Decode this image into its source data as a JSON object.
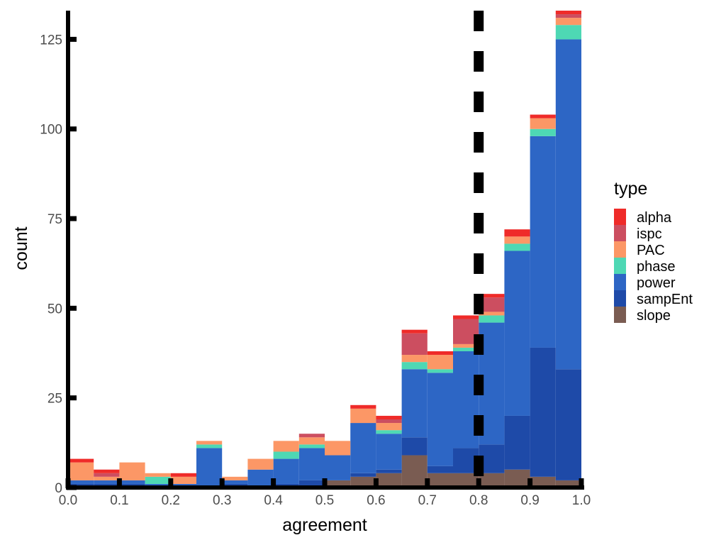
{
  "chart_data": {
    "type": "bar",
    "stacked": true,
    "xlabel": "agreement",
    "ylabel": "count",
    "xlim": [
      0,
      1
    ],
    "ylim": [
      0,
      133
    ],
    "xticks": [
      "0.0",
      "0.1",
      "0.2",
      "0.3",
      "0.4",
      "0.5",
      "0.6",
      "0.7",
      "0.8",
      "0.9",
      "1.0"
    ],
    "yticks": [
      "0",
      "25",
      "50",
      "75",
      "100",
      "125"
    ],
    "grid": false,
    "bin_width": 0.05,
    "bin_centers": [
      0.025,
      0.075,
      0.125,
      0.175,
      0.225,
      0.275,
      0.325,
      0.375,
      0.425,
      0.475,
      0.525,
      0.575,
      0.625,
      0.675,
      0.725,
      0.775,
      0.825,
      0.875,
      0.925,
      0.975
    ],
    "vline": {
      "x": 0.8,
      "style": "dashed"
    },
    "legend": {
      "title": "type",
      "position": "right"
    },
    "series": [
      {
        "name": "slope",
        "color": "#7a5c52",
        "values": [
          0,
          0,
          0,
          0,
          0,
          0,
          0,
          0,
          0,
          0,
          2,
          3,
          4,
          9,
          4,
          4,
          4,
          5,
          3,
          2
        ]
      },
      {
        "name": "sampEnt",
        "color": "#1e4aa8",
        "values": [
          1,
          1,
          1,
          0,
          0,
          0,
          1,
          0,
          1,
          2,
          0,
          1,
          1,
          5,
          2,
          7,
          8,
          15,
          36,
          31
        ]
      },
      {
        "name": "power",
        "color": "#2d66c5",
        "values": [
          1,
          1,
          1,
          1,
          1,
          11,
          1,
          5,
          7,
          9,
          7,
          14,
          10,
          19,
          26,
          27,
          34,
          46,
          59,
          92
        ]
      },
      {
        "name": "phase",
        "color": "#4ed8b4",
        "values": [
          0,
          0,
          0,
          2,
          0,
          1,
          0,
          0,
          2,
          1,
          0,
          0,
          1,
          2,
          1,
          1,
          2,
          2,
          2,
          4
        ]
      },
      {
        "name": "PAC",
        "color": "#fc9766",
        "values": [
          5,
          1,
          5,
          1,
          2,
          1,
          1,
          3,
          3,
          2,
          4,
          4,
          2,
          2,
          4,
          1,
          1,
          2,
          3,
          2
        ]
      },
      {
        "name": "ispc",
        "color": "#cc4e60",
        "values": [
          0,
          1,
          0,
          0,
          0,
          0,
          0,
          0,
          0,
          1,
          0,
          0,
          1,
          6,
          0,
          7,
          4,
          0,
          0,
          1
        ]
      },
      {
        "name": "alpha",
        "color": "#ef2b29",
        "values": [
          1,
          1,
          0,
          0,
          1,
          0,
          0,
          0,
          0,
          0,
          0,
          1,
          1,
          1,
          1,
          1,
          1,
          2,
          1,
          1
        ]
      }
    ],
    "legend_order": [
      "alpha",
      "ispc",
      "PAC",
      "phase",
      "power",
      "sampEnt",
      "slope"
    ]
  }
}
